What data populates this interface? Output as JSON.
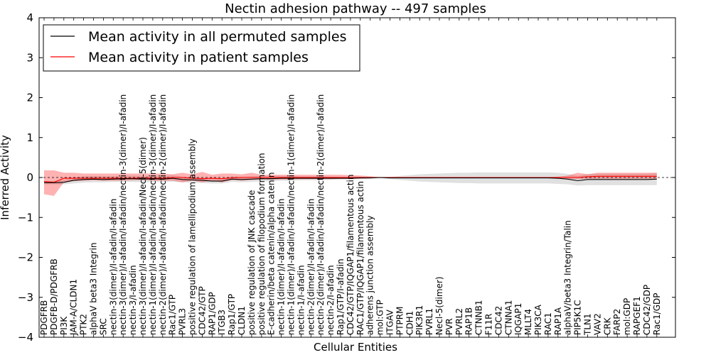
{
  "chart_data": {
    "type": "line",
    "title": "Nectin adhesion pathway -- 497 samples",
    "xlabel": "Cellular Entities",
    "ylabel": "Inferred Activity",
    "ylim": [
      -4,
      4
    ],
    "yticks": [
      4,
      3,
      2,
      1,
      0,
      -1,
      -2,
      -3,
      -4
    ],
    "ytick_labels": [
      "4",
      "3",
      "2",
      "1",
      "0",
      "−1",
      "−2",
      "−3",
      "−4"
    ],
    "legend": {
      "location": "top-left",
      "entries": [
        {
          "label": "Mean activity in all permuted samples",
          "color": "#000000"
        },
        {
          "label": "Mean activity in patient samples",
          "color": "#ff0000"
        }
      ]
    },
    "categories": [
      "PDGFRB",
      "PDGFB-D/PDGFRB",
      "PI3K",
      "JAM-A/CLDN1",
      "PTK2",
      "alphaV beta3 Integrin",
      "SRC",
      "nectin-3(dimer)/I-afadin/I-afadin",
      "nectin-3(dimer)/I-afadin/I-afadin/nectin-3(dimer)/I-afadin",
      "nectin-3/I-afadin",
      "nectin-3(dimer)/I-afadin/I-afadin/Necl-5(dimer)",
      "nectin-1(dimer)/I-afadin/I-afadin/nectin-3(dimer)/I-afadin",
      "nectin-2(dimer)/I-afadin/I-afadin/nectin-2(dimer)/I-afadin",
      "Rac1/GTP",
      "PVRL3",
      "positive regulation of lamellipodium assembly",
      "CDC42/GTP",
      "RAP1/GDP",
      "ITGB3",
      "Rap1/GTP",
      "CLDN1",
      "positive regulation of JNK cascade",
      "positive regulation of filopodium formation",
      "E-cadherin/beta catenin/alpha catenin",
      "nectin-1(dimer)/I-afadin/I-afadin",
      "nectin-1(dimer)/I-afadin/I-afadin/nectin-1(dimer)/I-afadin",
      "nectin-1/I-afadin",
      "nectin-2(dimer)/I-afadin/I-afadin",
      "nectin-2(dimer)/I-afadin/I-afadin/nectin-2(dimer)/I-afadin",
      "nectin-2/I-afadin",
      "Rap1/GTP/I-afadin",
      "CDC42/GTP/IQGAP1/filamentous actin",
      "RAC1/GTP/IQGAP1/filamentous actin",
      "adherens junction assembly",
      "mol:GTP",
      "ITGAV",
      "PTPRM",
      "CDH1",
      "PIK3R1",
      "PVRL1",
      "Necl-5(dimer)",
      "PVR",
      "PVRL2",
      "RAP1B",
      "CTNNB1",
      "F11R",
      "CDC42",
      "CTNNA1",
      "IQGAP1",
      "MLLT4",
      "PIK3CA",
      "RAC1",
      "RAP1A",
      "alphaV/beta3 Integrin/Talin",
      "PIP5K1C",
      "TLN1",
      "VAV2",
      "CRK",
      "FARP2",
      "mol:GDP",
      "RAPGEF1",
      "CDC42/GDP",
      "Rac1/GDP"
    ],
    "series": [
      {
        "name": "Mean activity in all permuted samples",
        "color": "#000000",
        "values": [
          -0.13,
          -0.13,
          -0.12,
          -0.07,
          -0.05,
          -0.04,
          -0.05,
          -0.04,
          -0.03,
          -0.03,
          -0.04,
          -0.03,
          -0.04,
          -0.02,
          -0.05,
          -0.06,
          -0.07,
          -0.09,
          -0.09,
          -0.04,
          -0.05,
          -0.04,
          -0.03,
          -0.03,
          -0.02,
          -0.02,
          -0.02,
          -0.02,
          -0.02,
          -0.02,
          -0.02,
          -0.02,
          -0.01,
          -0.01,
          0.0,
          -0.01,
          -0.01,
          -0.01,
          -0.01,
          -0.01,
          -0.01,
          -0.01,
          -0.01,
          -0.01,
          -0.01,
          -0.01,
          -0.01,
          -0.01,
          -0.01,
          -0.01,
          -0.01,
          -0.01,
          -0.02,
          -0.04,
          -0.08,
          -0.05,
          -0.05,
          -0.05,
          -0.05,
          -0.05,
          -0.05,
          -0.05,
          -0.04
        ],
        "band_lower": [
          -0.17,
          -0.17,
          -0.17,
          -0.15,
          -0.13,
          -0.12,
          -0.12,
          -0.11,
          -0.11,
          -0.11,
          -0.12,
          -0.11,
          -0.11,
          -0.1,
          -0.12,
          -0.13,
          -0.14,
          -0.15,
          -0.15,
          -0.11,
          -0.12,
          -0.11,
          -0.1,
          -0.09,
          -0.08,
          -0.08,
          -0.07,
          -0.07,
          -0.07,
          -0.06,
          -0.05,
          -0.05,
          -0.04,
          -0.03,
          -0.01,
          -0.04,
          -0.06,
          -0.08,
          -0.1,
          -0.11,
          -0.12,
          -0.13,
          -0.14,
          -0.14,
          -0.15,
          -0.15,
          -0.15,
          -0.15,
          -0.15,
          -0.15,
          -0.15,
          -0.15,
          -0.16,
          -0.17,
          -0.2,
          -0.19,
          -0.19,
          -0.19,
          -0.19,
          -0.19,
          -0.19,
          -0.19,
          -0.19
        ],
        "band_upper": [
          -0.09,
          -0.08,
          -0.06,
          0.0,
          0.03,
          0.04,
          0.03,
          0.03,
          0.05,
          0.05,
          0.04,
          0.05,
          0.04,
          0.06,
          0.02,
          0.0,
          0.0,
          -0.03,
          -0.03,
          0.03,
          0.02,
          0.03,
          0.04,
          0.04,
          0.04,
          0.04,
          0.03,
          0.03,
          0.03,
          0.02,
          0.01,
          0.01,
          0.02,
          0.01,
          0.01,
          0.02,
          0.04,
          0.06,
          0.08,
          0.09,
          0.1,
          0.11,
          0.12,
          0.12,
          0.13,
          0.13,
          0.13,
          0.13,
          0.13,
          0.13,
          0.13,
          0.13,
          0.12,
          0.09,
          0.04,
          0.09,
          0.09,
          0.09,
          0.09,
          0.09,
          0.09,
          0.09,
          0.11
        ]
      },
      {
        "name": "Mean activity in patient samples",
        "color": "#ff0000",
        "values": [
          -0.1,
          -0.12,
          -0.02,
          -0.02,
          -0.02,
          -0.02,
          -0.02,
          -0.02,
          -0.02,
          -0.02,
          -0.01,
          -0.02,
          -0.02,
          0.0,
          0.0,
          -0.02,
          -0.03,
          -0.02,
          -0.03,
          -0.01,
          0.0,
          0.0,
          0.0,
          0.0,
          0.0,
          0.0,
          0.0,
          0.0,
          0.0,
          0.0,
          0.0,
          0.0,
          0.0,
          0.0,
          0.0,
          0.0,
          0.0,
          0.0,
          0.0,
          0.0,
          0.0,
          0.0,
          0.0,
          0.0,
          0.0,
          0.0,
          0.0,
          0.0,
          0.0,
          0.0,
          0.0,
          0.0,
          0.0,
          0.0,
          0.0,
          0.02,
          0.03,
          0.03,
          0.03,
          0.03,
          0.03,
          0.03,
          0.03
        ],
        "band_lower": [
          -0.42,
          -0.46,
          -0.12,
          -0.09,
          -0.08,
          -0.07,
          -0.08,
          -0.08,
          -0.08,
          -0.07,
          -0.06,
          -0.08,
          -0.08,
          -0.08,
          -0.12,
          -0.08,
          -0.12,
          -0.08,
          -0.12,
          -0.06,
          -0.08,
          -0.06,
          -0.05,
          -0.05,
          -0.05,
          -0.05,
          -0.04,
          -0.04,
          -0.04,
          -0.04,
          -0.03,
          -0.03,
          -0.03,
          -0.02,
          -0.01,
          -0.01,
          -0.01,
          -0.01,
          -0.01,
          -0.01,
          -0.01,
          -0.01,
          -0.01,
          -0.01,
          -0.01,
          -0.01,
          -0.01,
          -0.01,
          -0.01,
          -0.01,
          -0.01,
          -0.01,
          -0.01,
          -0.03,
          -0.04,
          -0.03,
          -0.03,
          -0.03,
          -0.03,
          -0.03,
          -0.03,
          -0.03,
          -0.03
        ],
        "band_upper": [
          0.18,
          0.18,
          0.12,
          0.12,
          0.1,
          0.1,
          0.1,
          0.1,
          0.1,
          0.1,
          0.1,
          0.1,
          0.1,
          0.08,
          0.12,
          0.08,
          0.14,
          0.07,
          0.1,
          0.1,
          0.08,
          0.12,
          0.07,
          0.07,
          0.07,
          0.07,
          0.07,
          0.07,
          0.07,
          0.07,
          0.07,
          0.06,
          0.05,
          0.03,
          0.01,
          0.01,
          0.01,
          0.01,
          0.01,
          0.01,
          0.01,
          0.01,
          0.01,
          0.01,
          0.01,
          0.01,
          0.01,
          0.01,
          0.01,
          0.01,
          0.01,
          0.01,
          0.02,
          0.05,
          0.12,
          0.08,
          0.12,
          0.12,
          0.12,
          0.12,
          0.12,
          0.12,
          0.12
        ]
      }
    ]
  }
}
